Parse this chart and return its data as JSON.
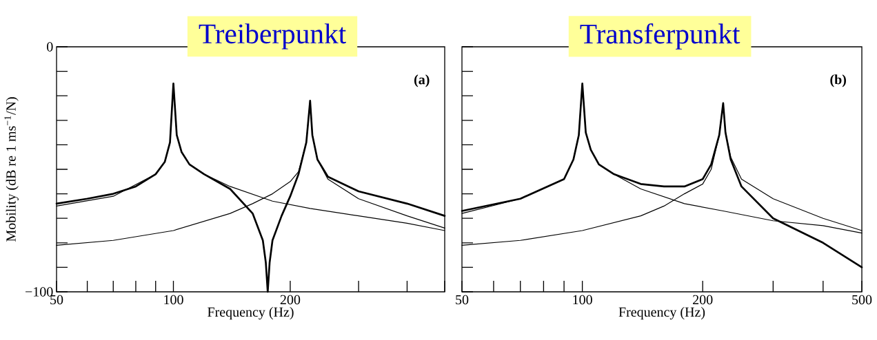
{
  "chart_data": [
    {
      "type": "line",
      "title": "Treiberpunkt",
      "xlabel": "Frequency (Hz)",
      "ylabel": "Mobility (dB re 1 ms$^{−1}$/N)",
      "annotations": [
        "(a)"
      ],
      "log": "x",
      "xlim": [
        50,
        500
      ],
      "ylim": [
        -100,
        0
      ],
      "xticks": [
        50,
        {
          "value": 60,
          "label": null
        },
        {
          "value": 70,
          "label": null
        },
        {
          "value": 80,
          "label": null
        },
        {
          "value": 90,
          "label": null
        },
        100,
        200,
        {
          "value": 300,
          "label": null
        },
        {
          "value": 400,
          "label": null
        },
        {
          "value": 500,
          "label": null
        }
      ],
      "yticks": [
        {
          "value": -100,
          "label": "−100"
        },
        {
          "value": -90,
          "label": null
        },
        {
          "value": -80,
          "label": null
        },
        {
          "value": -70,
          "label": null
        },
        {
          "value": -60,
          "label": null
        },
        {
          "value": -50,
          "label": null
        },
        {
          "value": -40,
          "label": null
        },
        {
          "value": -30,
          "label": null
        },
        {
          "value": -20,
          "label": null
        },
        {
          "value": -10,
          "label": null
        },
        0
      ],
      "series": [
        {
          "color": "#000000",
          "x": [
            50,
            60,
            70,
            80,
            90,
            95,
            98,
            100,
            102,
            105,
            110,
            120,
            140,
            160,
            170,
            173,
            175,
            177,
            180,
            190,
            200,
            210,
            220,
            225,
            228,
            235,
            250,
            300,
            400,
            500
          ],
          "values": [
            -64,
            -62,
            -60,
            -57,
            -52,
            -47,
            -39,
            -15,
            -36,
            -43,
            -48,
            -52,
            -58,
            -68,
            -79,
            -88,
            -100,
            -88,
            -79,
            -69,
            -61,
            -52,
            -39,
            -22,
            -36,
            -46,
            -53,
            -59,
            -64,
            -69
          ]
        },
        {
          "color": "#000000",
          "x": [
            50,
            70,
            90,
            95,
            98,
            100,
            102,
            105,
            110,
            120,
            140,
            180,
            225,
            300,
            400,
            500
          ],
          "values": [
            -65,
            -61,
            -52,
            -47,
            -39,
            -15,
            -36,
            -43,
            -48,
            -52,
            -57,
            -63,
            -66,
            -69,
            -72,
            -75
          ]
        },
        {
          "color": "#000000",
          "x": [
            50,
            70,
            100,
            140,
            160,
            180,
            200,
            210,
            220,
            225,
            228,
            235,
            250,
            300,
            400,
            500
          ],
          "values": [
            -81,
            -79,
            -75,
            -68,
            -64,
            -60,
            -55,
            -51,
            -39,
            -22,
            -36,
            -46,
            -54,
            -62,
            -69,
            -74
          ]
        }
      ]
    },
    {
      "type": "line",
      "title": "Transferpunkt",
      "xlabel": "Frequency (Hz)",
      "annotations": [
        "(b)"
      ],
      "log": "x",
      "tick_labels": "x",
      "xlim": [
        50,
        500
      ],
      "ylim": [
        -100,
        0
      ],
      "xticks": [
        50,
        {
          "value": 60,
          "label": null
        },
        {
          "value": 70,
          "label": null
        },
        {
          "value": 80,
          "label": null
        },
        {
          "value": 90,
          "label": null
        },
        100,
        200,
        {
          "value": 300,
          "label": null
        },
        {
          "value": 400,
          "label": null
        },
        500
      ],
      "yticks": [
        -100,
        -90,
        -80,
        -70,
        -60,
        -50,
        -40,
        -30,
        -20,
        -10,
        0
      ],
      "series": [
        {
          "color": "#000000",
          "x": [
            50,
            70,
            90,
            95,
            98,
            100,
            102,
            105,
            110,
            120,
            140,
            160,
            180,
            200,
            210,
            220,
            225,
            228,
            235,
            250,
            300,
            400,
            500
          ],
          "values": [
            -67,
            -62,
            -54,
            -46,
            -36,
            -15,
            -35,
            -42,
            -48,
            -52,
            -56,
            -57,
            -57,
            -54,
            -48,
            -36,
            -23,
            -35,
            -46,
            -57,
            -70,
            -80,
            -90
          ]
        },
        {
          "color": "#000000",
          "x": [
            50,
            70,
            90,
            95,
            98,
            100,
            102,
            105,
            110,
            120,
            140,
            180,
            225,
            300,
            400,
            500
          ],
          "values": [
            -68,
            -62,
            -54,
            -46,
            -36,
            -15,
            -35,
            -42,
            -48,
            -52,
            -58,
            -64,
            -67,
            -71,
            -73,
            -76
          ]
        },
        {
          "color": "#000000",
          "x": [
            50,
            70,
            100,
            140,
            160,
            180,
            200,
            210,
            220,
            225,
            228,
            235,
            250,
            300,
            400,
            500
          ],
          "values": [
            -81,
            -79,
            -75,
            -69,
            -65,
            -60,
            -56,
            -50,
            -36,
            -23,
            -35,
            -45,
            -54,
            -62,
            -70,
            -75
          ]
        }
      ]
    }
  ]
}
